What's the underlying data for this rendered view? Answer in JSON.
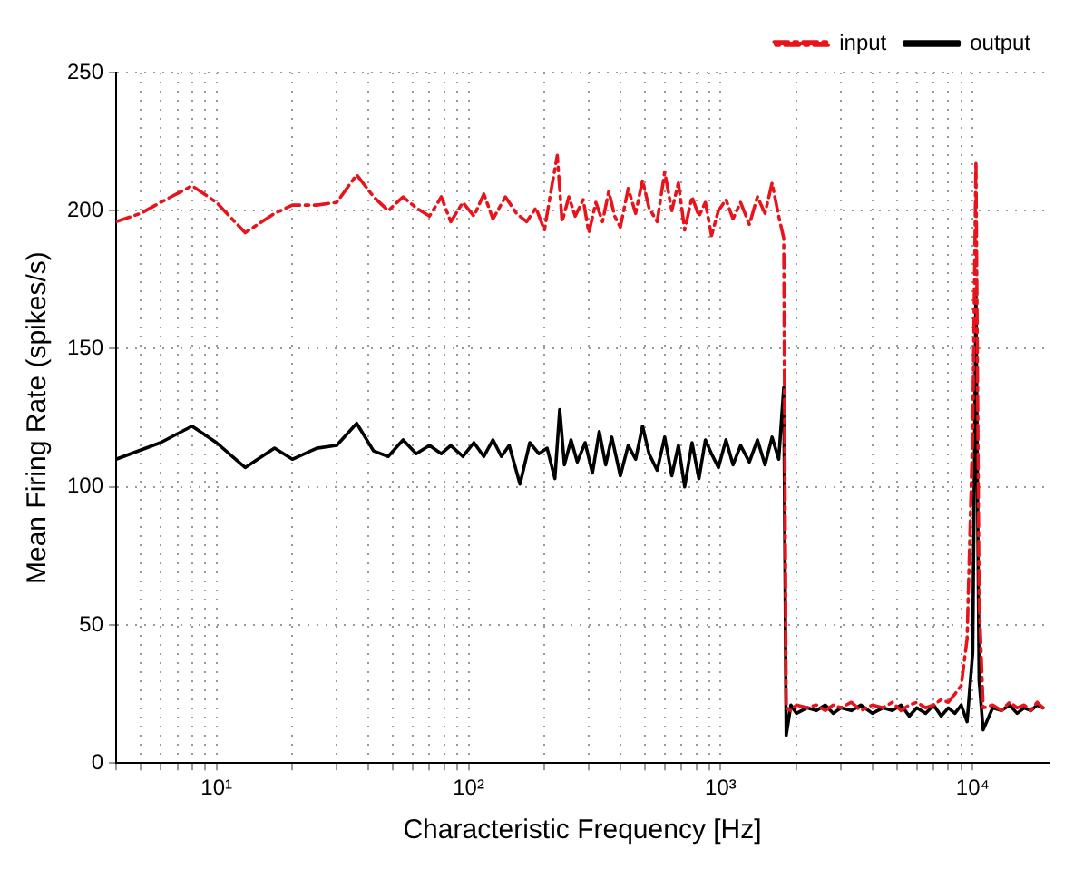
{
  "chart_data": {
    "type": "line",
    "xlabel": "Characteristic Frequency [Hz]",
    "ylabel": "Mean Firing Rate (spikes/s)",
    "log": "x",
    "xlim": [
      4,
      20000
    ],
    "ylim": [
      0,
      250
    ],
    "xticks": [
      {
        "value": 4,
        "label": null
      },
      {
        "value": 5,
        "label": null
      },
      {
        "value": 6,
        "label": null
      },
      {
        "value": 7,
        "label": null
      },
      {
        "value": 8,
        "label": null
      },
      {
        "value": 9,
        "label": null
      },
      {
        "value": 10,
        "label": "10¹"
      },
      {
        "value": 20,
        "label": null
      },
      {
        "value": 30,
        "label": null
      },
      {
        "value": 40,
        "label": null
      },
      {
        "value": 50,
        "label": null
      },
      {
        "value": 60,
        "label": null
      },
      {
        "value": 70,
        "label": null
      },
      {
        "value": 80,
        "label": null
      },
      {
        "value": 90,
        "label": null
      },
      {
        "value": 100,
        "label": "10²"
      },
      {
        "value": 200,
        "label": null
      },
      {
        "value": 300,
        "label": null
      },
      {
        "value": 400,
        "label": null
      },
      {
        "value": 500,
        "label": null
      },
      {
        "value": 600,
        "label": null
      },
      {
        "value": 700,
        "label": null
      },
      {
        "value": 800,
        "label": null
      },
      {
        "value": 900,
        "label": null
      },
      {
        "value": 1000,
        "label": "10³"
      },
      {
        "value": 2000,
        "label": null
      },
      {
        "value": 3000,
        "label": null
      },
      {
        "value": 4000,
        "label": null
      },
      {
        "value": 5000,
        "label": null
      },
      {
        "value": 6000,
        "label": null
      },
      {
        "value": 7000,
        "label": null
      },
      {
        "value": 8000,
        "label": null
      },
      {
        "value": 9000,
        "label": null
      },
      {
        "value": 10000,
        "label": "10⁴"
      }
    ],
    "yticks": [
      0,
      50,
      100,
      150,
      200,
      250
    ],
    "grid": true,
    "legend": "top right",
    "marker": "none",
    "series": [
      {
        "name": "input",
        "color": "#e8141c",
        "line_style": "dashed",
        "x": [
          4,
          5,
          6,
          8,
          10,
          13,
          17,
          20,
          25,
          30,
          36,
          42,
          48,
          55,
          62,
          70,
          78,
          85,
          95,
          105,
          115,
          125,
          140,
          155,
          170,
          185,
          200,
          215,
          225,
          235,
          250,
          265,
          285,
          300,
          320,
          340,
          360,
          380,
          400,
          430,
          460,
          490,
          520,
          560,
          600,
          640,
          680,
          720,
          770,
          820,
          870,
          920,
          980,
          1050,
          1120,
          1200,
          1300,
          1400,
          1500,
          1600,
          1700,
          1780,
          1820,
          1900,
          2000,
          2200,
          2400,
          2600,
          2800,
          3000,
          3300,
          3600,
          4000,
          4400,
          4800,
          5200,
          5600,
          6000,
          6500,
          7000,
          7500,
          8000,
          8500,
          9000,
          9500,
          10000,
          10300,
          10600,
          11000,
          12000,
          13000,
          14000,
          15000,
          16000,
          17000,
          18000,
          19000
        ],
        "values": [
          196,
          199,
          203,
          209,
          203,
          192,
          199,
          202,
          202,
          203,
          213,
          205,
          200,
          205,
          201,
          198,
          205,
          196,
          203,
          198,
          206,
          197,
          205,
          199,
          196,
          201,
          193,
          210,
          220,
          196,
          205,
          198,
          204,
          192,
          203,
          196,
          207,
          198,
          194,
          208,
          199,
          211,
          201,
          196,
          214,
          200,
          210,
          193,
          205,
          198,
          203,
          191,
          200,
          204,
          197,
          203,
          195,
          205,
          199,
          210,
          198,
          190,
          20,
          19,
          21,
          20,
          21,
          19,
          21,
          20,
          22,
          19,
          21,
          20,
          22,
          19,
          21,
          22,
          20,
          21,
          23,
          22,
          25,
          28,
          45,
          120,
          218,
          60,
          20,
          21,
          19,
          22,
          20,
          21,
          19,
          22,
          20
        ]
      },
      {
        "name": "output",
        "color": "#000000",
        "line_style": "solid",
        "x": [
          4,
          6,
          8,
          10,
          13,
          17,
          20,
          25,
          30,
          36,
          42,
          48,
          55,
          62,
          70,
          78,
          85,
          95,
          105,
          115,
          125,
          135,
          145,
          160,
          175,
          190,
          205,
          220,
          230,
          240,
          255,
          270,
          290,
          310,
          330,
          350,
          370,
          400,
          430,
          460,
          490,
          520,
          560,
          600,
          640,
          680,
          720,
          770,
          820,
          870,
          920,
          980,
          1050,
          1120,
          1200,
          1300,
          1400,
          1500,
          1600,
          1700,
          1780,
          1820,
          1900,
          2000,
          2200,
          2400,
          2600,
          2800,
          3000,
          3300,
          3600,
          4000,
          4400,
          4800,
          5200,
          5600,
          6000,
          6500,
          7000,
          7500,
          8000,
          8500,
          9000,
          9500,
          10000,
          10300,
          10600,
          11000,
          12000,
          13000,
          14000,
          15000,
          16000,
          17000,
          18000,
          19000
        ],
        "values": [
          110,
          116,
          122,
          116,
          107,
          114,
          110,
          114,
          115,
          123,
          113,
          111,
          117,
          112,
          115,
          112,
          115,
          111,
          116,
          111,
          117,
          111,
          115,
          101,
          116,
          112,
          114,
          103,
          128,
          108,
          117,
          109,
          116,
          105,
          120,
          108,
          118,
          104,
          115,
          110,
          122,
          112,
          106,
          118,
          104,
          115,
          100,
          116,
          103,
          117,
          112,
          107,
          117,
          108,
          115,
          109,
          117,
          108,
          118,
          110,
          136,
          10,
          21,
          18,
          20,
          19,
          21,
          18,
          20,
          19,
          21,
          18,
          20,
          19,
          21,
          17,
          20,
          18,
          21,
          17,
          20,
          18,
          21,
          15,
          40,
          170,
          30,
          12,
          20,
          19,
          21,
          18,
          20,
          19,
          21,
          20
        ]
      }
    ]
  }
}
